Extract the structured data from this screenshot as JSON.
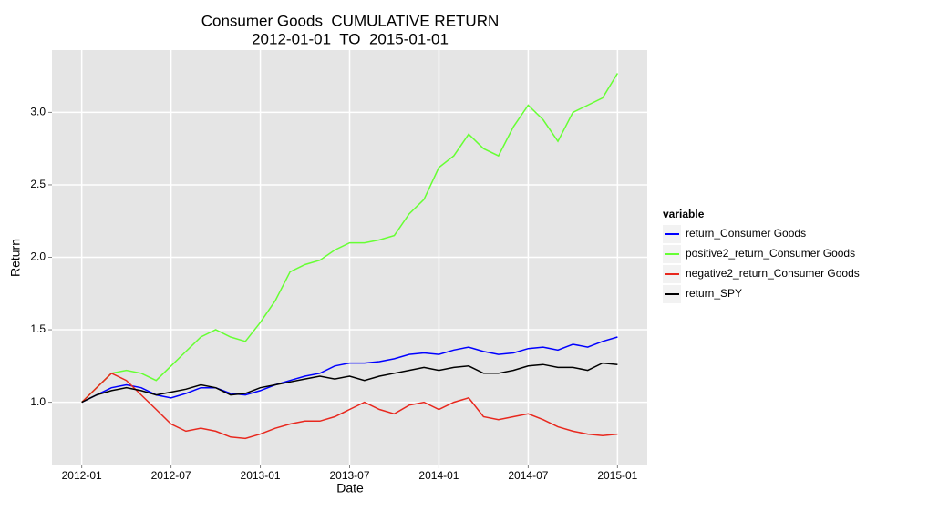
{
  "chart_data": {
    "type": "line",
    "title": "Consumer Goods  CUMULATIVE RETURN",
    "subtitle": "2012-01-01  TO  2015-01-01",
    "xlabel": "Date",
    "ylabel": "Return",
    "x": [
      "2012-01",
      "2012-02",
      "2012-03",
      "2012-04",
      "2012-05",
      "2012-06",
      "2012-07",
      "2012-08",
      "2012-09",
      "2012-10",
      "2012-11",
      "2012-12",
      "2013-01",
      "2013-02",
      "2013-03",
      "2013-04",
      "2013-05",
      "2013-06",
      "2013-07",
      "2013-08",
      "2013-09",
      "2013-10",
      "2013-11",
      "2013-12",
      "2014-01",
      "2014-02",
      "2014-03",
      "2014-04",
      "2014-05",
      "2014-06",
      "2014-07",
      "2014-08",
      "2014-09",
      "2014-10",
      "2014-11",
      "2014-12",
      "2015-01"
    ],
    "series": [
      {
        "name": "return_Consumer Goods",
        "color": "#0000ff",
        "values": [
          1.0,
          1.05,
          1.1,
          1.12,
          1.1,
          1.05,
          1.03,
          1.06,
          1.1,
          1.1,
          1.06,
          1.05,
          1.08,
          1.12,
          1.15,
          1.18,
          1.2,
          1.25,
          1.27,
          1.27,
          1.28,
          1.3,
          1.33,
          1.34,
          1.33,
          1.36,
          1.38,
          1.35,
          1.33,
          1.34,
          1.37,
          1.38,
          1.36,
          1.4,
          1.38,
          1.42,
          1.45
        ]
      },
      {
        "name": "positive2_return_Consumer Goods",
        "color": "#66ff33",
        "values": [
          1.0,
          1.1,
          1.2,
          1.22,
          1.2,
          1.15,
          1.25,
          1.35,
          1.45,
          1.5,
          1.45,
          1.42,
          1.55,
          1.7,
          1.9,
          1.95,
          1.98,
          2.05,
          2.1,
          2.1,
          2.12,
          2.15,
          2.3,
          2.4,
          2.62,
          2.7,
          2.85,
          2.75,
          2.7,
          2.9,
          3.05,
          2.95,
          2.8,
          3.0,
          3.05,
          3.1,
          3.27
        ]
      },
      {
        "name": "negative2_return_Consumer Goods",
        "color": "#e8281e",
        "values": [
          1.0,
          1.1,
          1.2,
          1.15,
          1.05,
          0.95,
          0.85,
          0.8,
          0.82,
          0.8,
          0.76,
          0.75,
          0.78,
          0.82,
          0.85,
          0.87,
          0.87,
          0.9,
          0.95,
          1.0,
          0.95,
          0.92,
          0.98,
          1.0,
          0.95,
          1.0,
          1.03,
          0.9,
          0.88,
          0.9,
          0.92,
          0.88,
          0.83,
          0.8,
          0.78,
          0.77,
          0.78
        ]
      },
      {
        "name": "return_SPY",
        "color": "#000000",
        "values": [
          1.0,
          1.05,
          1.08,
          1.1,
          1.08,
          1.05,
          1.07,
          1.09,
          1.12,
          1.1,
          1.05,
          1.06,
          1.1,
          1.12,
          1.14,
          1.16,
          1.18,
          1.16,
          1.18,
          1.15,
          1.18,
          1.2,
          1.22,
          1.24,
          1.22,
          1.24,
          1.25,
          1.2,
          1.2,
          1.22,
          1.25,
          1.26,
          1.24,
          1.24,
          1.22,
          1.27,
          1.26
        ]
      }
    ],
    "legend_title": "variable",
    "legend": "right",
    "xlim": [
      "2011-11",
      "2015-03"
    ],
    "xticks": [
      "2012-01",
      "2012-07",
      "2013-01",
      "2013-07",
      "2014-01",
      "2014-07",
      "2015-01"
    ],
    "ylim": [
      0.57,
      3.43
    ],
    "yticks": [
      {
        "value": 1,
        "label": "1.0"
      },
      1.5,
      {
        "value": 2,
        "label": "2.0"
      },
      2.5,
      {
        "value": 3,
        "label": "3.0"
      }
    ],
    "grid": true,
    "panel_color": "#e5e5e5"
  }
}
